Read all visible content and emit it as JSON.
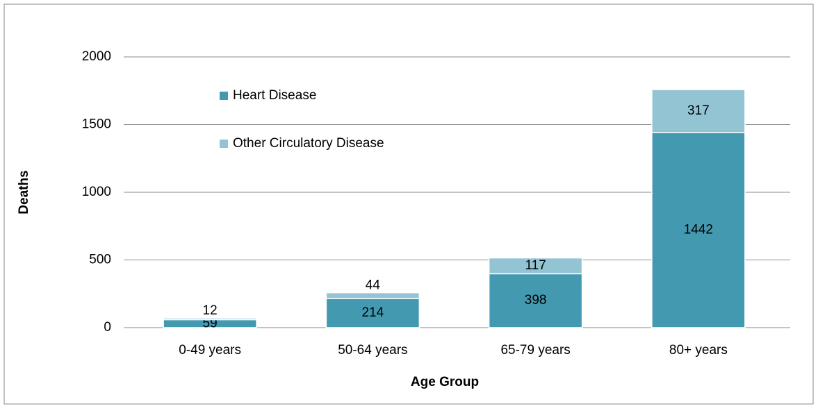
{
  "chart_data": {
    "type": "stacked_bar",
    "x_label": "Age Group",
    "y_label": "Deaths",
    "categories": [
      "0-49 years",
      "50-64 years",
      "65-79 years",
      "80+ years"
    ],
    "series": [
      {
        "name": "Heart Disease",
        "color": "#4299b0",
        "values": [
          59,
          214,
          398,
          1442
        ]
      },
      {
        "name": "Other Circulatory Disease",
        "color": "#93c4d4",
        "values": [
          12,
          44,
          117,
          317
        ]
      }
    ],
    "ylim": [
      0,
      2000
    ],
    "yticks": [
      0,
      500,
      1000,
      1500,
      2000
    ],
    "grid": true,
    "legend": "upper left"
  }
}
